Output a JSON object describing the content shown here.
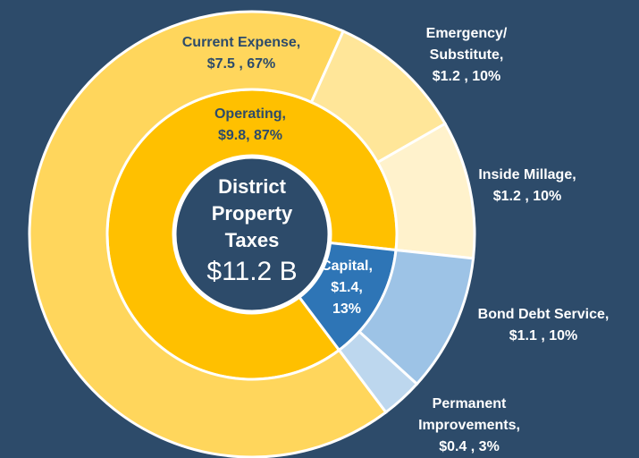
{
  "chart_data": {
    "type": "sunburst",
    "title": [
      "District",
      "Property",
      "Taxes"
    ],
    "subtitle": "$11.2 B",
    "rings": [
      {
        "values": [
          87,
          13
        ],
        "colors": [
          "#ffc000",
          "#2e75b6"
        ],
        "labels": [
          [
            "Operating,",
            "$9.8, 87%"
          ],
          [
            "Capital,",
            "$1.4,",
            "13%"
          ]
        ]
      },
      {
        "values": [
          67,
          10,
          10,
          10,
          3
        ],
        "colors": [
          "#ffd65c",
          "#ffe699",
          "#fff2cc",
          "#9dc3e6",
          "#bdd7ee"
        ],
        "labels": [
          [
            "Current Expense,",
            "$7.5 , 67%"
          ],
          [
            "Emergency/",
            "Substitute,",
            "$1.2 , 10%"
          ],
          [
            "Inside Millage,",
            "$1.2 , 10%"
          ],
          [
            "Bond Debt Service,",
            "$1.1 , 10%"
          ],
          [
            "Permanent",
            "Improvements,",
            "$0.4 , 3%"
          ]
        ]
      }
    ]
  }
}
